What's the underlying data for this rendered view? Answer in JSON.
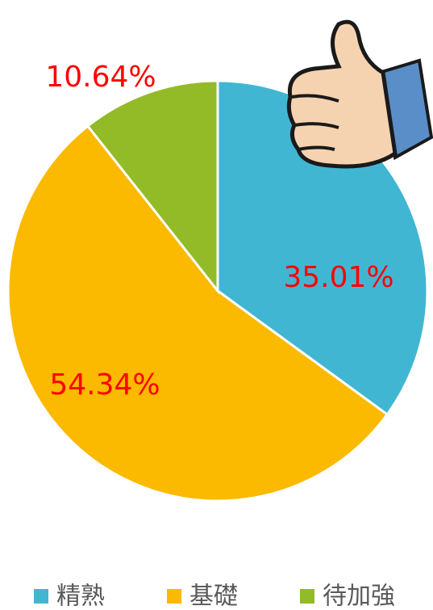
{
  "chart_data": {
    "type": "pie",
    "categories": [
      "精熟",
      "基礎",
      "待加強"
    ],
    "values": [
      35.01,
      54.34,
      10.64
    ],
    "value_labels": [
      "35.01%",
      "54.34%",
      "10.64%"
    ],
    "colors": [
      "#41b6d3",
      "#fbb900",
      "#92bb27"
    ],
    "legend": "bottom"
  }
}
